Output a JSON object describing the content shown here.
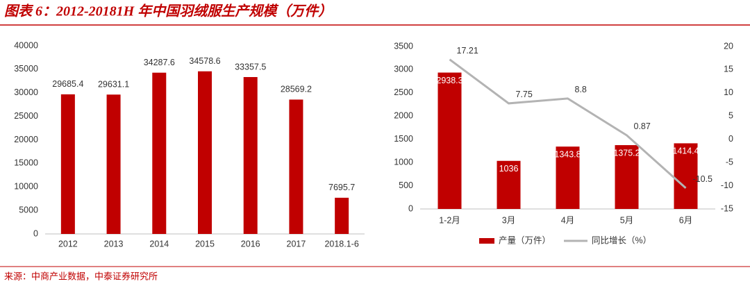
{
  "title": "图表 6：2012-20181H 年中国羽绒服生产规模（万件）",
  "source": "来源：中商产业数据，中泰证券研究所",
  "chart_data": [
    {
      "type": "bar",
      "categories": [
        "2012",
        "2013",
        "2014",
        "2015",
        "2016",
        "2017",
        "2018.1-6"
      ],
      "values": [
        29685.4,
        29631.1,
        34287.6,
        34578.6,
        33357.5,
        28569.2,
        7695.7
      ],
      "color": "#c00000",
      "ylim": [
        0,
        40000
      ],
      "yticks": [
        0,
        5000,
        10000,
        15000,
        20000,
        25000,
        30000,
        35000,
        40000
      ],
      "grid": false
    },
    {
      "type": "combo",
      "categories": [
        "1-2月",
        "3月",
        "4月",
        "5月",
        "6月"
      ],
      "series": [
        {
          "name": "产量（万件）",
          "type": "bar",
          "color": "#c00000",
          "values": [
            2938.3,
            1036,
            1343.8,
            1375.2,
            1414.4
          ]
        },
        {
          "name": "同比增长（%）",
          "type": "line",
          "color": "#b3b3b3",
          "axis": "y2",
          "values": [
            17.21,
            7.75,
            8.8,
            0.87,
            -10.5
          ]
        }
      ],
      "ylim": [
        0,
        3500
      ],
      "yticks": [
        0,
        500,
        1000,
        1500,
        2000,
        2500,
        3000,
        3500
      ],
      "y2lim": [
        -15,
        20
      ],
      "y2ticks": [
        -15,
        -10,
        -5,
        0,
        5,
        10,
        15,
        20
      ],
      "grid": false,
      "legend": "bottom"
    }
  ]
}
